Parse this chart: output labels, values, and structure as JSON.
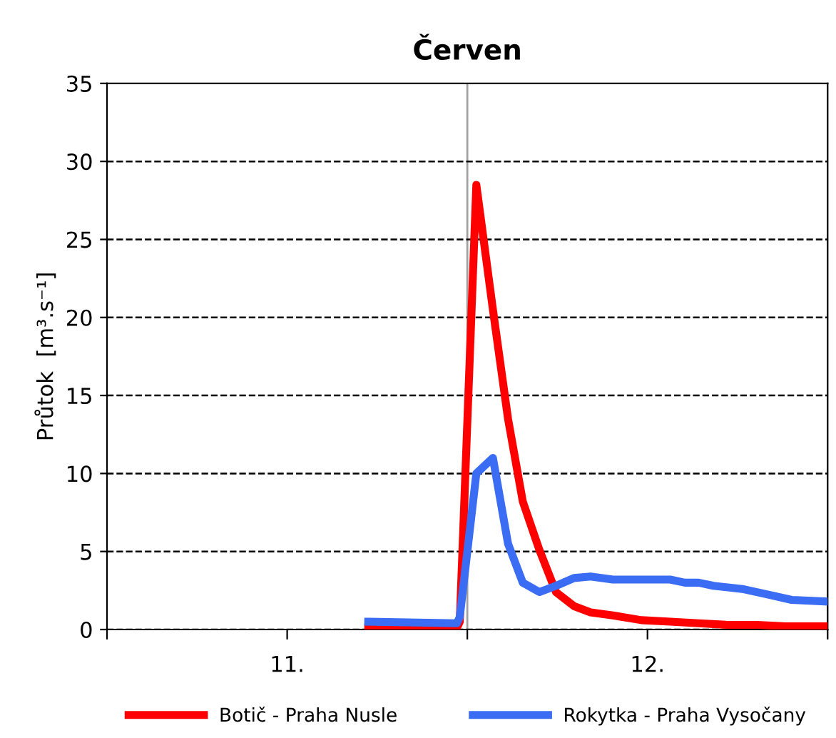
{
  "chart_data": {
    "type": "line",
    "title": "Červen",
    "ylabel": "Průtok  [m³.s⁻¹]",
    "xlim": [
      10.5,
      12.5
    ],
    "xticks": [
      {
        "value": 10.5,
        "label": null
      },
      {
        "value": 11,
        "label": "11."
      },
      {
        "value": 11.5,
        "label": null
      },
      {
        "value": 12,
        "label": "12."
      },
      {
        "value": 12.5,
        "label": null
      }
    ],
    "ylim": [
      0,
      35
    ],
    "yticks": [
      0,
      5,
      10,
      15,
      20,
      25,
      30,
      35
    ],
    "grid": "y",
    "legend": "bottom",
    "line_style": "solid",
    "marker": "none",
    "ref_lines": [
      {
        "axis": "x",
        "value": 11.5,
        "label": null,
        "color": "#a0a0a0"
      }
    ],
    "series": [
      {
        "name": "Botič - Praha Nusle",
        "color": "#ff0000",
        "x": [
          11.225,
          11.471,
          11.479,
          11.525,
          11.571,
          11.613,
          11.654,
          11.7,
          11.746,
          11.796,
          11.842,
          11.904,
          11.983,
          12.063,
          12.142,
          12.221,
          12.304,
          12.383,
          12.492
        ],
        "values": [
          0.1,
          0.1,
          0.5,
          28.5,
          20.5,
          13.5,
          8.2,
          5.1,
          2.4,
          1.5,
          1.1,
          0.9,
          0.6,
          0.5,
          0.4,
          0.3,
          0.3,
          0.2,
          0.2
        ]
      },
      {
        "name": "Rokytka - Praha Vysočany",
        "color": "#3a6cf4",
        "x": [
          11.225,
          11.471,
          11.479,
          11.525,
          11.571,
          11.613,
          11.654,
          11.7,
          11.746,
          11.796,
          11.842,
          11.904,
          11.983,
          12.063,
          12.104,
          12.142,
          12.183,
          12.263,
          12.342,
          12.4,
          12.492
        ],
        "values": [
          0.5,
          0.4,
          0.8,
          10,
          11,
          5.5,
          3.0,
          2.4,
          2.8,
          3.3,
          3.4,
          3.2,
          3.2,
          3.2,
          3.0,
          3.0,
          2.8,
          2.6,
          2.2,
          1.9,
          1.8
        ]
      }
    ]
  }
}
